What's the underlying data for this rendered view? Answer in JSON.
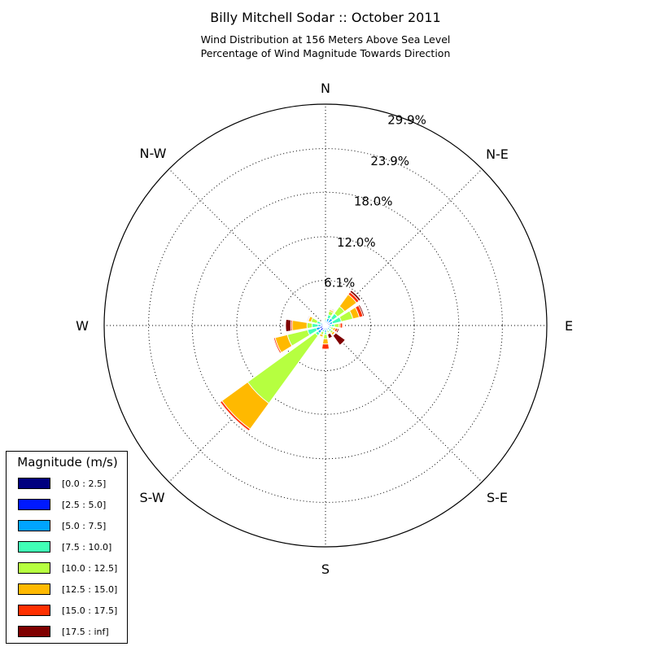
{
  "title": "Billy Mitchell Sodar :: October 2011",
  "subtitle_line1": "Wind Distribution at 156 Meters Above Sea Level",
  "subtitle_line2": "Percentage of Wind Magnitude Towards Direction",
  "chart_data": {
    "type": "windrose",
    "direction_labels": [
      "N",
      "N-E",
      "E",
      "S-E",
      "S",
      "S-W",
      "W",
      "N-W"
    ],
    "radial_tick_labels": [
      "6.1%",
      "12.0%",
      "18.0%",
      "23.9%",
      "29.9%"
    ],
    "radial_ticks": [
      6.1,
      12.0,
      18.0,
      23.9,
      29.9
    ],
    "rmax": 29.9,
    "grid": true,
    "legend_placement": "lower-left",
    "legend": {
      "title": "Magnitude (m/s)",
      "bins": [
        {
          "label": "[0.0 : 2.5]",
          "color": "#00007f"
        },
        {
          "label": "[2.5 : 5.0]",
          "color": "#0019ff"
        },
        {
          "label": "[5.0 : 7.5]",
          "color": "#00a4ff"
        },
        {
          "label": "[7.5 : 10.0]",
          "color": "#40ffb6"
        },
        {
          "label": "[10.0 : 12.5]",
          "color": "#b6ff40"
        },
        {
          "label": "[12.5 : 15.0]",
          "color": "#ffb900"
        },
        {
          "label": "[15.0 : 17.5]",
          "color": "#ff3000"
        },
        {
          "label": "[17.5 : inf]",
          "color": "#7f0000"
        }
      ]
    },
    "sectors": [
      {
        "direction_deg": 0,
        "cumulative": [
          0.2,
          0.4,
          0.6,
          0.8,
          1.0,
          1.1,
          1.2,
          1.3
        ]
      },
      {
        "direction_deg": 22.5,
        "cumulative": [
          0.2,
          0.5,
          1.0,
          1.5,
          2.0,
          2.2,
          2.3,
          2.4
        ]
      },
      {
        "direction_deg": 45,
        "cumulative": [
          0.3,
          0.6,
          1.2,
          2.0,
          3.2,
          5.2,
          5.6,
          5.9
        ]
      },
      {
        "direction_deg": 67.5,
        "cumulative": [
          0.3,
          0.6,
          1.0,
          2.2,
          3.8,
          4.7,
          5.2,
          5.4
        ]
      },
      {
        "direction_deg": 90,
        "cumulative": [
          0.3,
          0.5,
          0.8,
          1.2,
          1.8,
          2.0,
          2.3,
          2.4
        ]
      },
      {
        "direction_deg": 112.5,
        "cumulative": [
          0.2,
          0.4,
          0.6,
          0.8,
          1.1,
          1.4,
          1.7,
          1.9
        ]
      },
      {
        "direction_deg": 135,
        "cumulative": [
          0.2,
          0.4,
          0.7,
          1.0,
          1.3,
          1.6,
          1.7,
          3.3
        ]
      },
      {
        "direction_deg": 157.5,
        "cumulative": [
          0.2,
          0.4,
          0.6,
          0.8,
          1.0,
          1.1,
          1.2,
          1.8
        ]
      },
      {
        "direction_deg": 180,
        "cumulative": [
          0.3,
          0.6,
          0.9,
          1.2,
          1.8,
          2.5,
          3.2,
          3.3
        ]
      },
      {
        "direction_deg": 202.5,
        "cumulative": [
          0.2,
          0.4,
          0.6,
          0.9,
          1.3,
          1.6,
          1.7,
          1.8
        ]
      },
      {
        "direction_deg": 225,
        "cumulative": [
          0.4,
          0.9,
          1.3,
          1.7,
          13.0,
          17.3,
          17.6,
          17.7
        ]
      },
      {
        "direction_deg": 247.5,
        "cumulative": [
          0.4,
          0.8,
          1.3,
          2.5,
          5.3,
          7.0,
          7.2,
          7.3
        ]
      },
      {
        "direction_deg": 270,
        "cumulative": [
          0.3,
          0.6,
          1.0,
          1.8,
          2.5,
          4.5,
          4.7,
          5.4
        ]
      },
      {
        "direction_deg": 292.5,
        "cumulative": [
          0.2,
          0.4,
          0.7,
          1.2,
          2.0,
          2.4,
          2.5,
          2.6
        ]
      },
      {
        "direction_deg": 315,
        "cumulative": [
          0.2,
          0.3,
          0.4,
          0.5,
          0.6,
          0.7,
          0.75,
          0.8
        ]
      },
      {
        "direction_deg": 337.5,
        "cumulative": [
          0.1,
          0.2,
          0.3,
          0.4,
          0.5,
          0.55,
          0.6,
          0.65
        ]
      }
    ]
  }
}
